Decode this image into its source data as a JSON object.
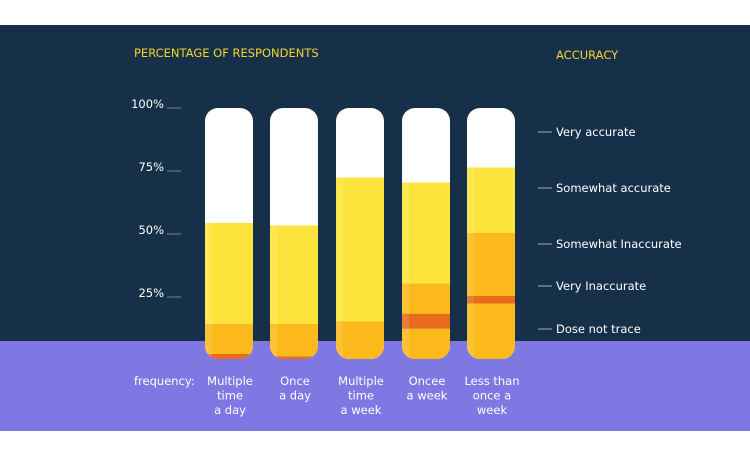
{
  "chart_data": {
    "type": "bar",
    "title": "PERCENTAGE OF RESPONDENTS",
    "legend_title": "ACCURACY",
    "x_prefix": "frequency:",
    "y_ticks": [
      "100%",
      "75%",
      "50%",
      "25%"
    ],
    "categories": [
      [
        "Multiple",
        "time",
        "a day"
      ],
      [
        "Once",
        "a day"
      ],
      [
        "Multiple",
        "time",
        "a week"
      ],
      [
        "Oncee",
        "a week"
      ],
      [
        "Less than",
        "once a",
        "week"
      ]
    ],
    "series": [
      {
        "name": "Dose not trace",
        "color": "#e86a1c",
        "values": [
          2,
          1,
          0,
          0,
          0
        ]
      },
      {
        "name": "Very Inaccurate",
        "color": "#fbb91c",
        "values": [
          12,
          13,
          15,
          12,
          22
        ]
      },
      {
        "name": "Somewhat Inaccurate",
        "color": "#e86a1c",
        "values": [
          0,
          0,
          0,
          6,
          3
        ]
      },
      {
        "name": "Somewhat accurate",
        "color": "#fbb91c",
        "values": [
          0,
          0,
          0,
          12,
          25
        ]
      },
      {
        "name": "Very accurate",
        "color": "#fde43c",
        "values": [
          40,
          39,
          57,
          40,
          26
        ]
      }
    ],
    "legend": [
      "Very accurate",
      "Somewhat accurate",
      "Somewhat Inaccurate",
      "Very Inaccurate",
      "Dose not trace"
    ],
    "ylim": [
      0,
      100
    ],
    "colors": {
      "panel": "#16304a",
      "base": "#7f78e2",
      "tube": "#ffffff",
      "title": "#f5d52a"
    }
  }
}
